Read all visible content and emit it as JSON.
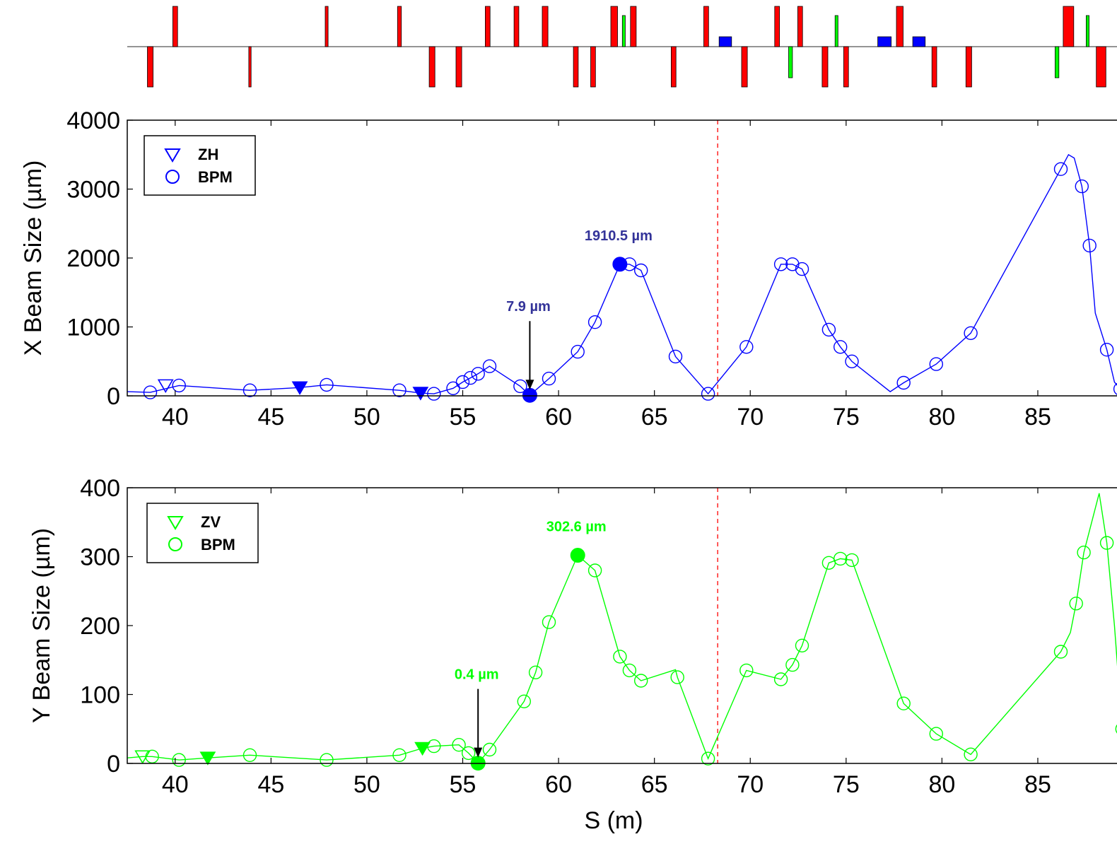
{
  "chart_data": [
    {
      "type": "lattice",
      "elements": [
        {
          "s": 38.7,
          "w": 0.3,
          "side": "down",
          "kind": "quad",
          "color": "#ff0000"
        },
        {
          "s": 40.0,
          "w": 0.25,
          "side": "up",
          "kind": "quad",
          "color": "#ff0000"
        },
        {
          "s": 43.9,
          "w": 0.12,
          "side": "down",
          "kind": "quad",
          "color": "#ff0000"
        },
        {
          "s": 47.9,
          "w": 0.15,
          "side": "up",
          "kind": "quad",
          "color": "#ff0000"
        },
        {
          "s": 51.7,
          "w": 0.2,
          "side": "up",
          "kind": "quad",
          "color": "#ff0000"
        },
        {
          "s": 53.4,
          "w": 0.3,
          "side": "down",
          "kind": "quad",
          "color": "#ff0000"
        },
        {
          "s": 54.8,
          "w": 0.3,
          "side": "down",
          "kind": "quad",
          "color": "#ff0000"
        },
        {
          "s": 56.3,
          "w": 0.25,
          "side": "up",
          "kind": "quad",
          "color": "#ff0000"
        },
        {
          "s": 57.8,
          "w": 0.25,
          "side": "up",
          "kind": "quad",
          "color": "#ff0000"
        },
        {
          "s": 59.3,
          "w": 0.3,
          "side": "up",
          "kind": "quad",
          "color": "#ff0000"
        },
        {
          "s": 60.9,
          "w": 0.25,
          "side": "down",
          "kind": "quad",
          "color": "#ff0000"
        },
        {
          "s": 61.8,
          "w": 0.25,
          "side": "down",
          "kind": "quad",
          "color": "#ff0000"
        },
        {
          "s": 62.9,
          "w": 0.35,
          "side": "up",
          "kind": "quad",
          "color": "#ff0000"
        },
        {
          "s": 63.4,
          "w": 0.15,
          "side": "up",
          "kind": "corrector",
          "color": "#00ff00"
        },
        {
          "s": 63.9,
          "w": 0.3,
          "side": "up",
          "kind": "quad",
          "color": "#ff0000"
        },
        {
          "s": 66.0,
          "w": 0.25,
          "side": "down",
          "kind": "quad",
          "color": "#ff0000"
        },
        {
          "s": 67.7,
          "w": 0.25,
          "side": "up",
          "kind": "quad",
          "color": "#ff0000"
        },
        {
          "s": 68.7,
          "w": 0.65,
          "side": "up",
          "kind": "bpm",
          "color": "#0000ff"
        },
        {
          "s": 69.7,
          "w": 0.3,
          "side": "down",
          "kind": "quad",
          "color": "#ff0000"
        },
        {
          "s": 71.4,
          "w": 0.25,
          "side": "up",
          "kind": "quad",
          "color": "#ff0000"
        },
        {
          "s": 72.1,
          "w": 0.2,
          "side": "down",
          "kind": "corrector",
          "color": "#00ff00"
        },
        {
          "s": 72.6,
          "w": 0.25,
          "side": "up",
          "kind": "quad",
          "color": "#ff0000"
        },
        {
          "s": 73.9,
          "w": 0.3,
          "side": "down",
          "kind": "quad",
          "color": "#ff0000"
        },
        {
          "s": 74.5,
          "w": 0.15,
          "side": "up",
          "kind": "corrector",
          "color": "#00ff00"
        },
        {
          "s": 75.0,
          "w": 0.25,
          "side": "down",
          "kind": "quad",
          "color": "#ff0000"
        },
        {
          "s": 77.0,
          "w": 0.7,
          "side": "up",
          "kind": "bpm",
          "color": "#0000ff"
        },
        {
          "s": 77.8,
          "w": 0.35,
          "side": "up",
          "kind": "quad",
          "color": "#ff0000"
        },
        {
          "s": 78.8,
          "w": 0.65,
          "side": "up",
          "kind": "bpm",
          "color": "#0000ff"
        },
        {
          "s": 79.6,
          "w": 0.25,
          "side": "down",
          "kind": "quad",
          "color": "#ff0000"
        },
        {
          "s": 81.4,
          "w": 0.3,
          "side": "down",
          "kind": "quad",
          "color": "#ff0000"
        },
        {
          "s": 86.0,
          "w": 0.2,
          "side": "down",
          "kind": "corrector",
          "color": "#00ff00"
        },
        {
          "s": 86.6,
          "w": 0.55,
          "side": "up",
          "kind": "quad",
          "color": "#ff0000"
        },
        {
          "s": 87.6,
          "w": 0.15,
          "side": "up",
          "kind": "corrector",
          "color": "#00ff00"
        },
        {
          "s": 88.3,
          "w": 0.5,
          "side": "down",
          "kind": "quad",
          "color": "#ff0000"
        }
      ]
    },
    {
      "type": "line",
      "color": "#0000ff",
      "xlim": [
        37.5,
        89.5
      ],
      "ylim": [
        0,
        4000
      ],
      "xticks": [
        40,
        45,
        50,
        55,
        60,
        65,
        70,
        75,
        80,
        85
      ],
      "yticks": [
        0,
        1000,
        2000,
        3000,
        4000
      ],
      "xlabel": "",
      "ylabel": "X Beam Size (µm)",
      "legend": {
        "position": "top-left",
        "entries": [
          "ZH",
          "BPM"
        ]
      },
      "vline_x": 68.3,
      "vline_color": "#ff0000",
      "curve": [
        [
          37.5,
          60
        ],
        [
          38.7,
          50
        ],
        [
          40.2,
          150
        ],
        [
          43.9,
          80
        ],
        [
          46.5,
          120
        ],
        [
          47.9,
          160
        ],
        [
          51.7,
          80
        ],
        [
          52.8,
          40
        ],
        [
          53.5,
          30
        ],
        [
          54.5,
          110
        ],
        [
          55.0,
          200
        ],
        [
          55.4,
          260
        ],
        [
          55.8,
          320
        ],
        [
          56.4,
          430
        ],
        [
          58.0,
          140
        ],
        [
          58.5,
          8
        ],
        [
          59.5,
          250
        ],
        [
          61.0,
          640
        ],
        [
          61.9,
          1070
        ],
        [
          63.2,
          1910
        ],
        [
          63.7,
          1910
        ],
        [
          64.3,
          1820
        ],
        [
          66.1,
          570
        ],
        [
          67.8,
          30
        ],
        [
          69.8,
          710
        ],
        [
          71.6,
          1910
        ],
        [
          72.2,
          1910
        ],
        [
          72.7,
          1840
        ],
        [
          74.1,
          960
        ],
        [
          74.7,
          710
        ],
        [
          75.3,
          500
        ],
        [
          77.3,
          60
        ],
        [
          78.0,
          190
        ],
        [
          79.7,
          460
        ],
        [
          81.5,
          910
        ],
        [
          86.2,
          3290
        ],
        [
          86.6,
          3500
        ],
        [
          86.9,
          3450
        ],
        [
          87.3,
          3040
        ],
        [
          87.7,
          2180
        ],
        [
          88.0,
          1200
        ],
        [
          88.6,
          670
        ],
        [
          89.0,
          200
        ],
        [
          89.3,
          100
        ]
      ],
      "bpm": [
        [
          38.7,
          50
        ],
        [
          40.2,
          150
        ],
        [
          43.9,
          80
        ],
        [
          47.9,
          160
        ],
        [
          51.7,
          80
        ],
        [
          53.5,
          30
        ],
        [
          54.5,
          110
        ],
        [
          55.0,
          200
        ],
        [
          55.4,
          260
        ],
        [
          55.8,
          320
        ],
        [
          56.4,
          430
        ],
        [
          58.0,
          140
        ],
        [
          59.5,
          250
        ],
        [
          61.0,
          640
        ],
        [
          61.9,
          1070
        ],
        [
          63.7,
          1910
        ],
        [
          64.3,
          1820
        ],
        [
          66.1,
          570
        ],
        [
          67.8,
          30
        ],
        [
          69.8,
          710
        ],
        [
          71.6,
          1910
        ],
        [
          72.2,
          1910
        ],
        [
          72.7,
          1840
        ],
        [
          74.1,
          960
        ],
        [
          74.7,
          710
        ],
        [
          75.3,
          500
        ],
        [
          78.0,
          190
        ],
        [
          79.7,
          460
        ],
        [
          81.5,
          910
        ],
        [
          86.2,
          3290
        ],
        [
          87.3,
          3040
        ],
        [
          87.7,
          2180
        ],
        [
          88.6,
          670
        ],
        [
          89.3,
          100
        ]
      ],
      "correctors": [
        {
          "x": 39.5,
          "y": 150,
          "filled": false
        },
        {
          "x": 46.5,
          "y": 120,
          "filled": true
        },
        {
          "x": 52.8,
          "y": 40,
          "filled": true
        }
      ],
      "highlights": [
        {
          "x": 63.2,
          "y": 1910,
          "label": "1910.5 µm",
          "arrow": false
        },
        {
          "x": 58.5,
          "y": 8,
          "label": "7.9 µm",
          "arrow": true
        }
      ],
      "legend_text": {
        "corrector": "ZH",
        "bpm": "BPM"
      }
    },
    {
      "type": "line",
      "color": "#00ff00",
      "xlim": [
        37.5,
        89.5
      ],
      "ylim": [
        0,
        400
      ],
      "xticks": [
        40,
        45,
        50,
        55,
        60,
        65,
        70,
        75,
        80,
        85
      ],
      "yticks": [
        0,
        100,
        200,
        300,
        400
      ],
      "xlabel": "S (m)",
      "ylabel": "Y Beam Size (µm)",
      "legend": {
        "position": "top-left",
        "entries": [
          "ZV",
          "BPM"
        ]
      },
      "vline_x": 68.3,
      "vline_color": "#ff0000",
      "curve": [
        [
          37.5,
          8
        ],
        [
          38.3,
          10
        ],
        [
          38.8,
          10
        ],
        [
          40.2,
          5
        ],
        [
          41.7,
          8
        ],
        [
          43.9,
          12
        ],
        [
          47.9,
          5
        ],
        [
          51.7,
          12
        ],
        [
          52.9,
          22
        ],
        [
          53.5,
          25
        ],
        [
          54.8,
          27
        ],
        [
          55.3,
          15
        ],
        [
          55.8,
          0.4
        ],
        [
          56.4,
          20
        ],
        [
          58.2,
          90
        ],
        [
          58.8,
          132
        ],
        [
          59.5,
          205
        ],
        [
          61.0,
          302
        ],
        [
          61.9,
          280
        ],
        [
          63.2,
          155
        ],
        [
          63.7,
          135
        ],
        [
          64.3,
          120
        ],
        [
          66.1,
          136
        ],
        [
          66.2,
          125
        ],
        [
          67.8,
          7
        ],
        [
          69.8,
          135
        ],
        [
          71.6,
          122
        ],
        [
          72.2,
          143
        ],
        [
          72.7,
          171
        ],
        [
          74.1,
          291
        ],
        [
          74.7,
          297
        ],
        [
          75.3,
          295
        ],
        [
          78.0,
          87
        ],
        [
          79.7,
          43
        ],
        [
          81.5,
          13
        ],
        [
          86.2,
          162
        ],
        [
          86.7,
          190
        ],
        [
          87.0,
          232
        ],
        [
          87.4,
          306
        ],
        [
          88.2,
          392
        ],
        [
          88.6,
          320
        ],
        [
          89.0,
          200
        ],
        [
          89.4,
          50
        ]
      ],
      "bpm": [
        [
          38.8,
          10
        ],
        [
          40.2,
          5
        ],
        [
          43.9,
          12
        ],
        [
          47.9,
          5
        ],
        [
          51.7,
          12
        ],
        [
          53.5,
          25
        ],
        [
          54.8,
          27
        ],
        [
          55.3,
          15
        ],
        [
          56.4,
          20
        ],
        [
          58.2,
          90
        ],
        [
          58.8,
          132
        ],
        [
          59.5,
          205
        ],
        [
          61.9,
          280
        ],
        [
          63.2,
          155
        ],
        [
          63.7,
          135
        ],
        [
          64.3,
          120
        ],
        [
          66.2,
          125
        ],
        [
          67.8,
          7
        ],
        [
          69.8,
          135
        ],
        [
          71.6,
          122
        ],
        [
          72.2,
          143
        ],
        [
          72.7,
          171
        ],
        [
          74.1,
          291
        ],
        [
          74.7,
          297
        ],
        [
          75.3,
          295
        ],
        [
          78.0,
          87
        ],
        [
          79.7,
          43
        ],
        [
          81.5,
          13
        ],
        [
          86.2,
          162
        ],
        [
          87.0,
          232
        ],
        [
          87.4,
          306
        ],
        [
          88.6,
          320
        ],
        [
          89.4,
          50
        ]
      ],
      "correctors": [
        {
          "x": 38.3,
          "y": 10,
          "filled": false
        },
        {
          "x": 41.7,
          "y": 8,
          "filled": true
        },
        {
          "x": 52.9,
          "y": 22,
          "filled": true
        }
      ],
      "highlights": [
        {
          "x": 61.0,
          "y": 302,
          "label": "302.6 µm",
          "arrow": false
        },
        {
          "x": 55.8,
          "y": 0.4,
          "label": "0.4 µm",
          "arrow": true
        }
      ],
      "legend_text": {
        "corrector": "ZV",
        "bpm": "BPM"
      }
    }
  ]
}
